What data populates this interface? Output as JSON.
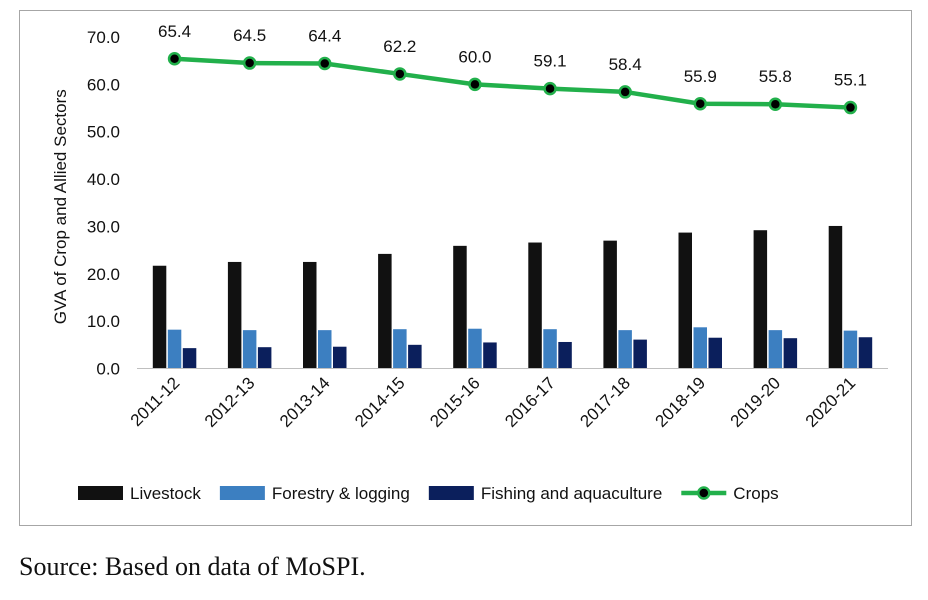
{
  "chart_data": {
    "type": "bar",
    "title": "",
    "xlabel": "",
    "ylabel": "GVA of Crop and Allied Sectors",
    "ylim": [
      0,
      70
    ],
    "yticks": [
      "0.0",
      "10.0",
      "20.0",
      "30.0",
      "40.0",
      "50.0",
      "60.0",
      "70.0"
    ],
    "grid": false,
    "legend_position": "bottom",
    "categories": [
      "2011-12",
      "2012-13",
      "2013-14",
      "2014-15",
      "2015-16",
      "2016-17",
      "2017-18",
      "2018-19",
      "2019-20",
      "2020-21"
    ],
    "series": [
      {
        "name": "Livestock",
        "type": "bar",
        "color": "#111111",
        "values": [
          21.7,
          22.5,
          22.5,
          24.2,
          25.9,
          26.6,
          27.0,
          28.7,
          29.2,
          30.1
        ]
      },
      {
        "name": "Forestry & logging",
        "type": "bar",
        "color": "#3c7fc1",
        "values": [
          8.2,
          8.1,
          8.1,
          8.3,
          8.4,
          8.3,
          8.1,
          8.7,
          8.1,
          8.0
        ]
      },
      {
        "name": "Fishing and aquaculture",
        "type": "bar",
        "color": "#0b1f5c",
        "values": [
          4.3,
          4.5,
          4.6,
          5.0,
          5.5,
          5.6,
          6.1,
          6.5,
          6.4,
          6.6
        ]
      },
      {
        "name": "Crops",
        "type": "line",
        "color": "#22b04b",
        "values": [
          65.4,
          64.5,
          64.4,
          62.2,
          60.0,
          59.1,
          58.4,
          55.9,
          55.8,
          55.1
        ],
        "labels": [
          "65.4",
          "64.5",
          "64.4",
          "62.2",
          "60.0",
          "59.1",
          "58.4",
          "55.9",
          "55.8",
          "55.1"
        ]
      }
    ]
  },
  "source": "Source: Based on data of MoSPI."
}
